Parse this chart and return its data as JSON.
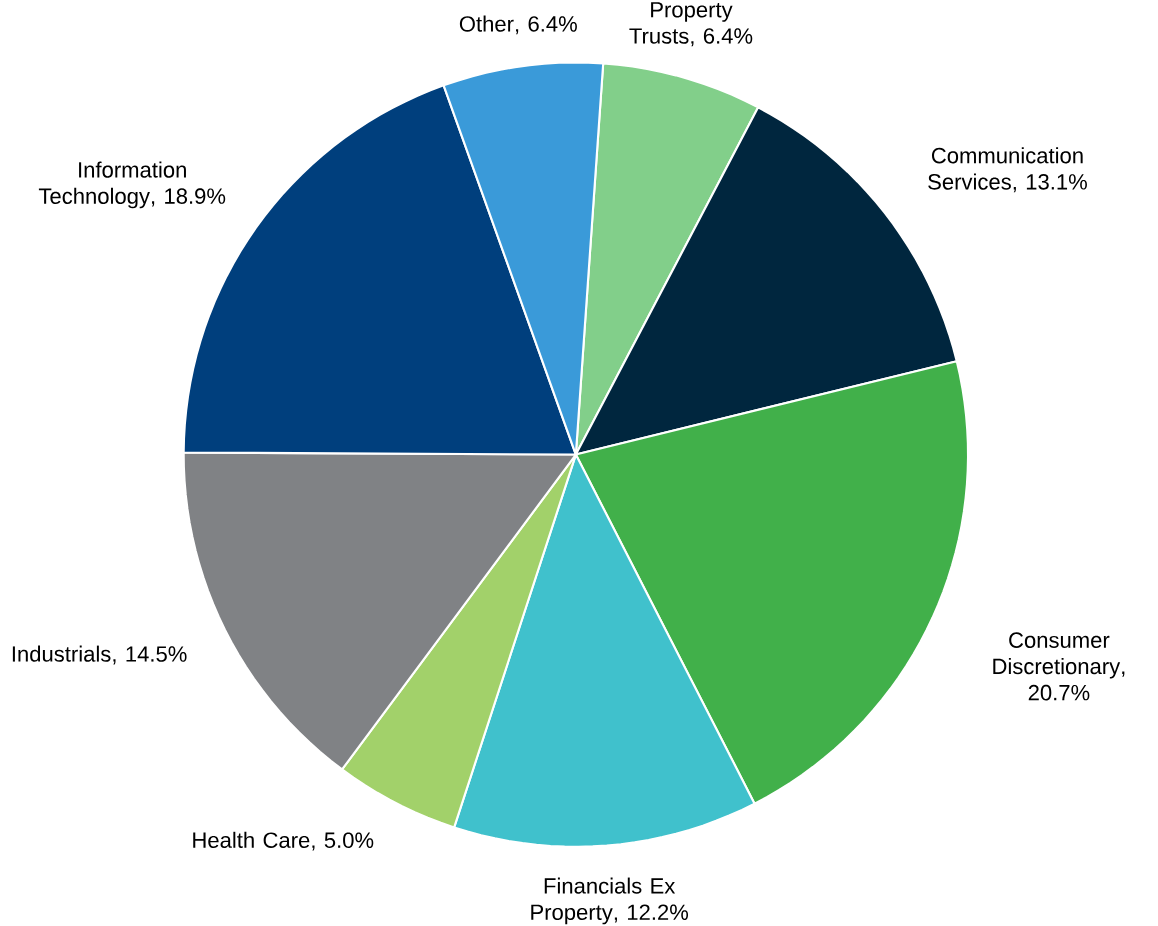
{
  "chart_data": {
    "type": "pie",
    "categories": [
      "Property Trusts",
      "Communication Services",
      "Consumer Discretionary",
      "Financials Ex Property",
      "Health Care",
      "Industrials",
      "Information Technology",
      "Other"
    ],
    "values": [
      6.4,
      13.1,
      20.7,
      12.2,
      5.0,
      14.5,
      18.9,
      6.4
    ],
    "colors": [
      "#82cf8a",
      "#00263e",
      "#41b04a",
      "#40c1cc",
      "#a2d16a",
      "#808285",
      "#003f7d",
      "#3a9ad9"
    ],
    "value_labels": [
      ", 6.4%",
      ", 13.1%",
      ", 20.7%",
      ", 12.2%",
      ", 5.0%",
      ", 14.5%",
      ", 18.9%",
      ", 6.4%"
    ]
  }
}
